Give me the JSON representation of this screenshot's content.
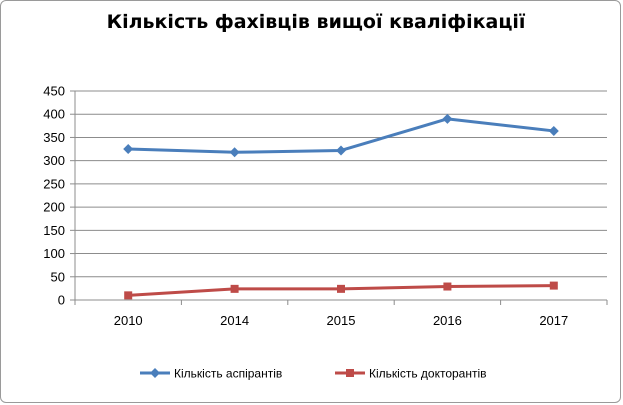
{
  "chart_data": {
    "type": "line",
    "title": "Кількість фахівців вищої кваліфікації",
    "xlabel": "",
    "ylabel": "",
    "categories": [
      "2010",
      "2014",
      "2015",
      "2016",
      "2017"
    ],
    "ylim": [
      0,
      450
    ],
    "yticks": [
      "0",
      "50",
      "100",
      "150",
      "200",
      "250",
      "300",
      "350",
      "400",
      "450"
    ],
    "grid": true,
    "legend_position": "bottom",
    "series": [
      {
        "name": "Кількість аспірантів",
        "values": [
          325,
          318,
          322,
          390,
          364
        ],
        "color": "#4a7ebb",
        "marker": "diamond"
      },
      {
        "name": "Кількість докторантів",
        "values": [
          10,
          24,
          24,
          29,
          31
        ],
        "color": "#be4b48",
        "marker": "square"
      }
    ]
  }
}
